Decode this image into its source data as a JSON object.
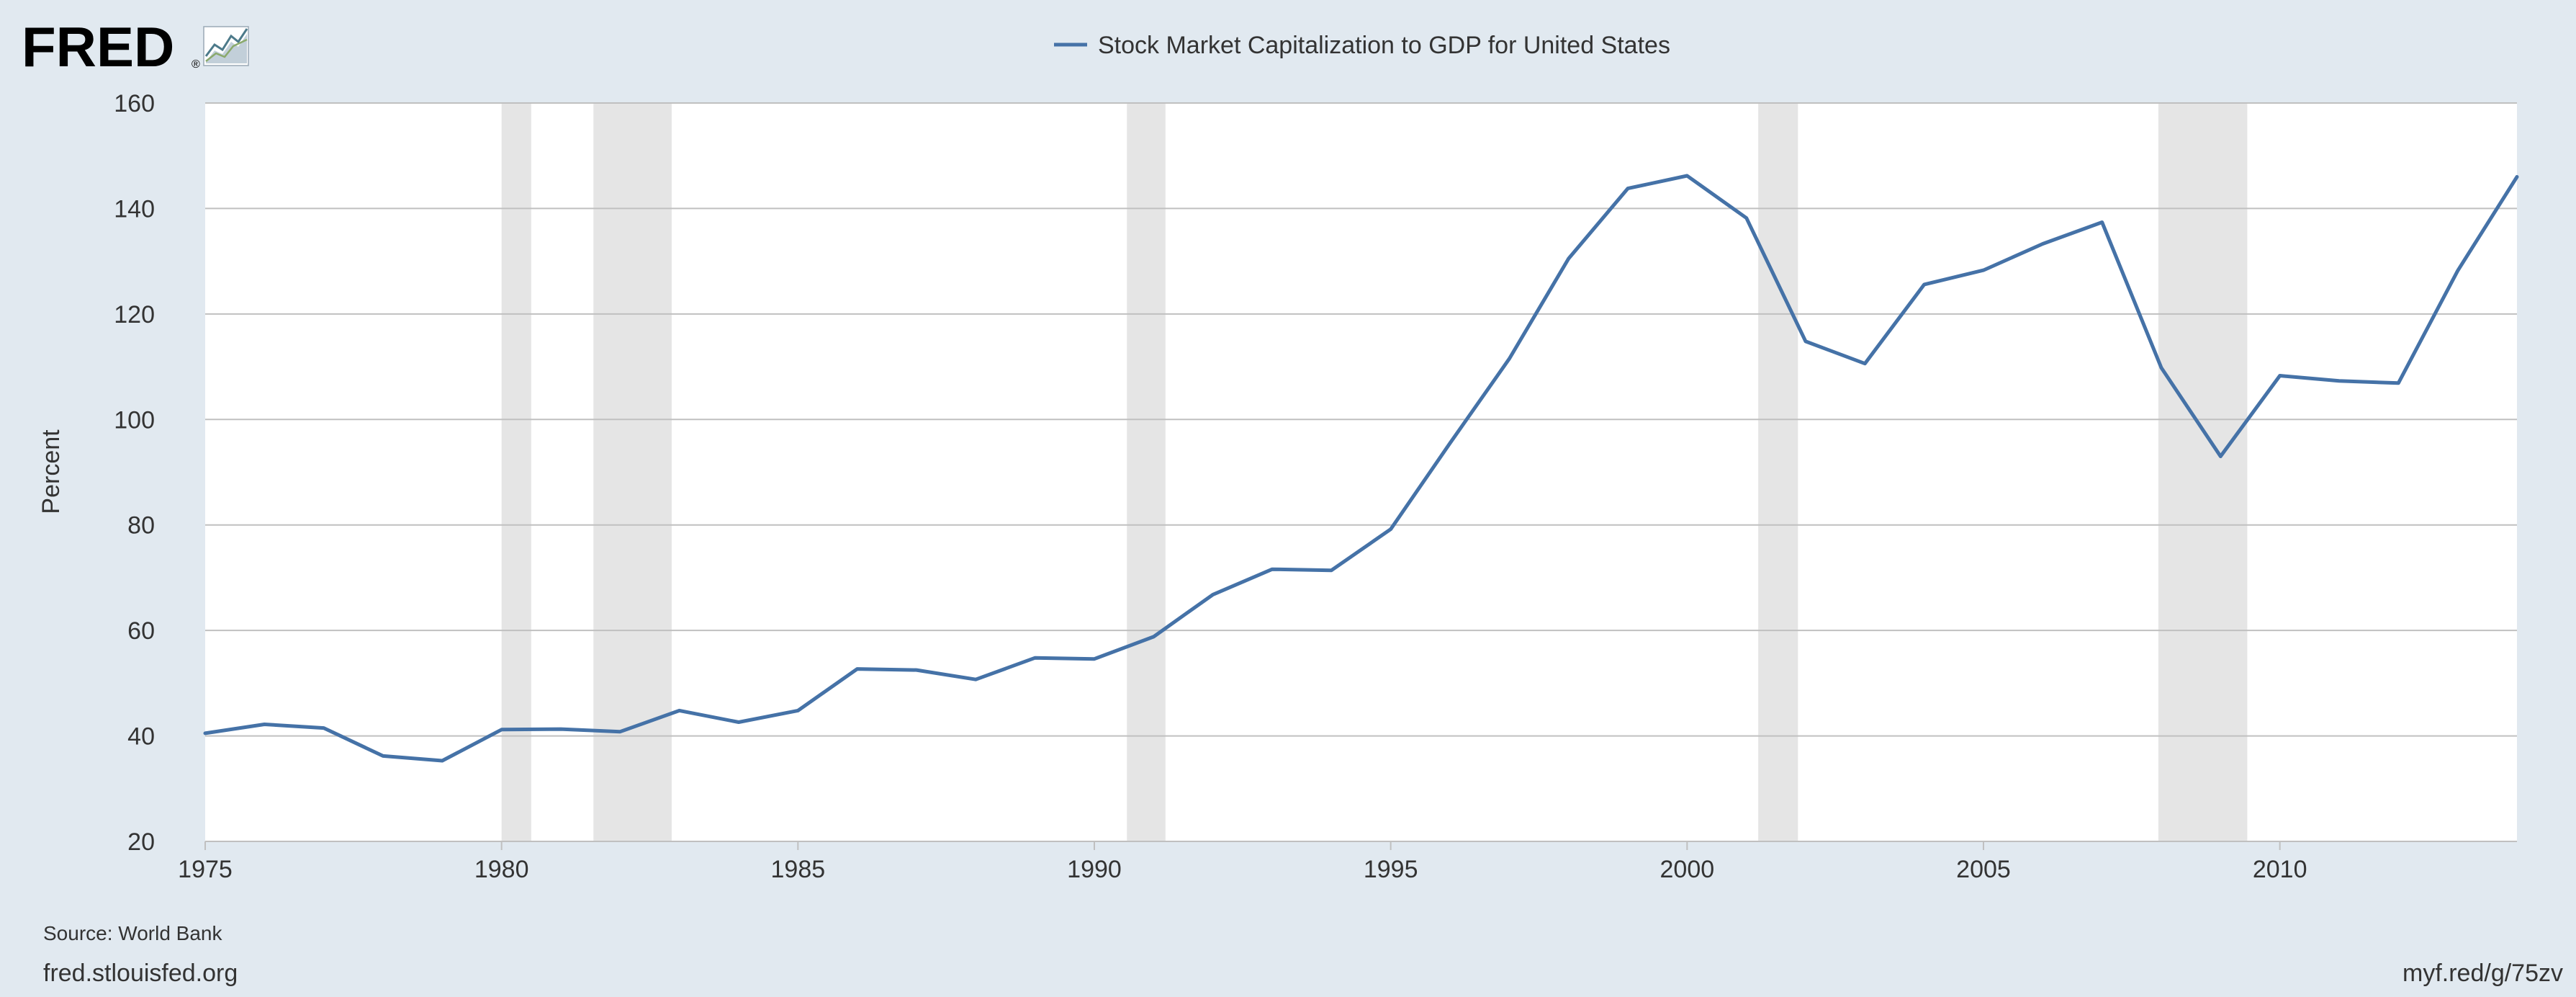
{
  "header": {
    "logo_text": "FRED",
    "logo_mark": "®",
    "logo_icon": "chart-line-icon"
  },
  "chart_data": {
    "type": "line",
    "legend": "top-center",
    "ylabel": "Percent",
    "xlim": [
      1975,
      2014
    ],
    "ylim": [
      20,
      160
    ],
    "yticks": [
      20,
      40,
      60,
      80,
      100,
      120,
      140,
      160
    ],
    "xticks": [
      1975,
      1980,
      1985,
      1990,
      1995,
      2000,
      2005,
      2010
    ],
    "grid": true,
    "series": [
      {
        "name": "Stock Market Capitalization to GDP for United States",
        "color": "#4572a7",
        "x": [
          1975,
          1976,
          1977,
          1978,
          1979,
          1980,
          1981,
          1982,
          1983,
          1984,
          1985,
          1986,
          1987,
          1988,
          1989,
          1990,
          1991,
          1992,
          1993,
          1994,
          1995,
          1996,
          1997,
          1998,
          1999,
          2000,
          2001,
          2002,
          2003,
          2004,
          2005,
          2006,
          2007,
          2008,
          2009,
          2010,
          2011,
          2012,
          2013,
          2014
        ],
        "values": [
          40.5,
          42.2,
          41.5,
          36.2,
          35.3,
          41.2,
          41.3,
          40.8,
          44.8,
          42.6,
          44.8,
          52.7,
          52.5,
          50.7,
          54.8,
          54.6,
          58.8,
          66.8,
          71.6,
          71.4,
          79.2,
          95.5,
          111.5,
          130.5,
          143.8,
          146.2,
          138.2,
          114.8,
          110.6,
          125.6,
          128.3,
          133.3,
          137.4,
          109.8,
          93.0,
          108.3,
          107.3,
          106.9,
          128.2,
          146.0
        ]
      }
    ],
    "recessions": [
      [
        1980.0,
        1980.5
      ],
      [
        1981.55,
        1982.87
      ],
      [
        1990.55,
        1991.2
      ],
      [
        2001.2,
        2001.87
      ],
      [
        2007.95,
        2009.45
      ]
    ]
  },
  "footer": {
    "source": "Source: World Bank",
    "site": "fred.stlouisfed.org",
    "short_url": "myf.red/g/75zv"
  }
}
